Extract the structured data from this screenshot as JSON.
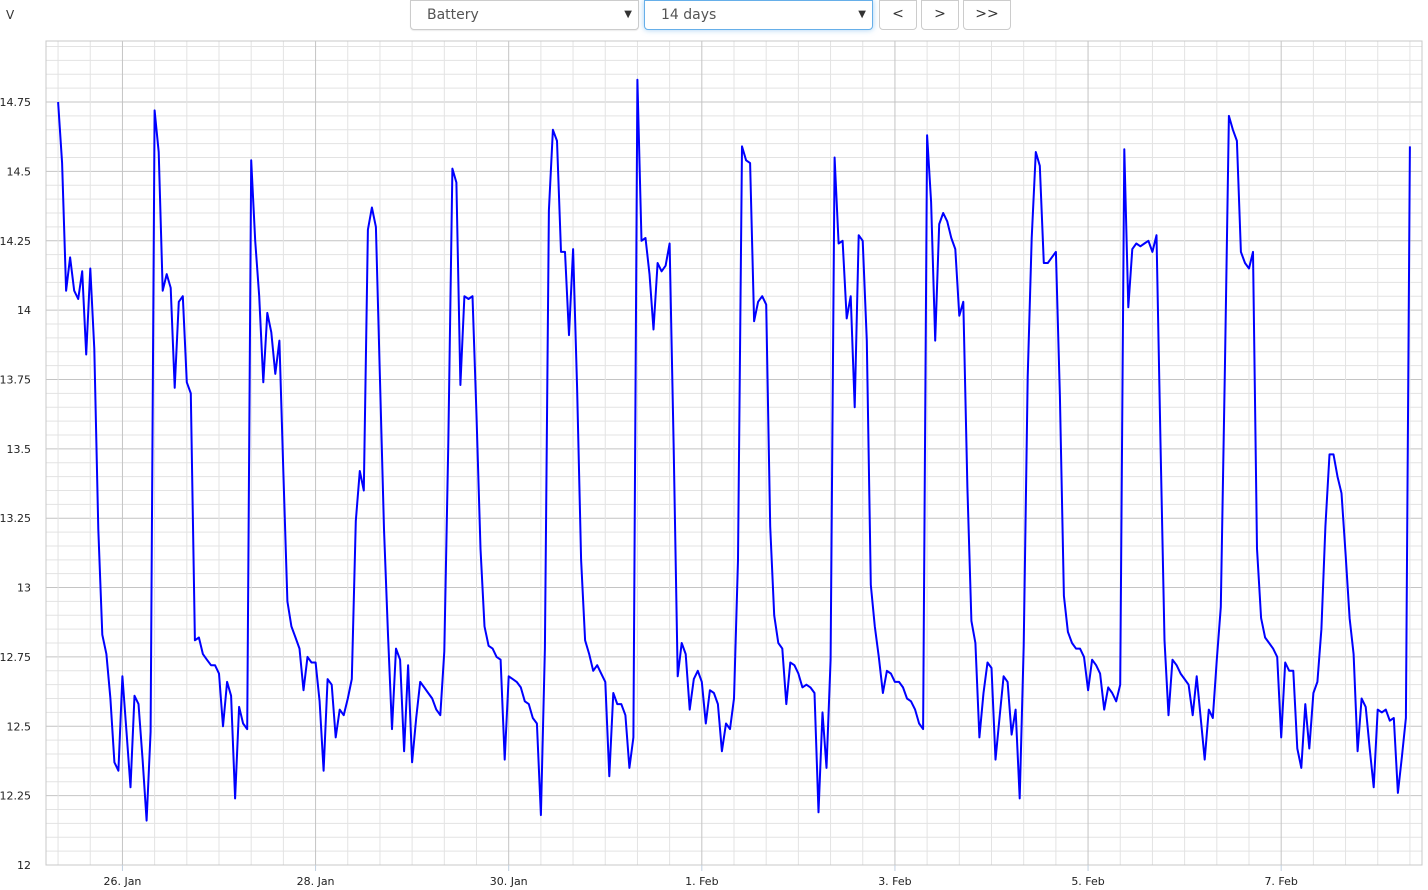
{
  "header": {
    "unit_label": "V",
    "source_select": {
      "value": "Battery",
      "icon": "caret-down-icon"
    },
    "range_select": {
      "value": "14 days",
      "icon": "caret-down-icon"
    },
    "prev_label": "<",
    "next_label": ">",
    "last_label": ">>"
  },
  "colors": {
    "line": "#0000ff",
    "grid_minor": "#e3e3e3",
    "grid_major": "#c4c4c4"
  },
  "chart_data": {
    "type": "line",
    "title": "",
    "xlabel": "",
    "ylabel": "V",
    "grid": true,
    "ylim": [
      12,
      14.97
    ],
    "xlim": [
      "25 Jan 05:00",
      "8 Feb 11:00"
    ],
    "y_ticks": [
      {
        "value": 12,
        "label": "12"
      },
      {
        "value": 12.25,
        "label": "12.25"
      },
      {
        "value": 12.5,
        "label": "12.5"
      },
      {
        "value": 12.75,
        "label": "12.75"
      },
      {
        "value": 13,
        "label": "13"
      },
      {
        "value": 13.25,
        "label": "13.25"
      },
      {
        "value": 13.5,
        "label": "13.5"
      },
      {
        "value": 13.75,
        "label": "13.75"
      },
      {
        "value": 14,
        "label": "14"
      },
      {
        "value": 14.25,
        "label": "14.25"
      },
      {
        "value": 14.5,
        "label": "14.5"
      },
      {
        "value": 14.75,
        "label": "14.75"
      }
    ],
    "x_ticks": [
      {
        "at": "26 Jan 00:00",
        "label": "26. Jan"
      },
      {
        "at": "28 Jan 00:00",
        "label": "28. Jan"
      },
      {
        "at": "30 Jan 00:00",
        "label": "30. Jan"
      },
      {
        "at": "1 Feb 00:00",
        "label": "1. Feb"
      },
      {
        "at": "3 Feb 00:00",
        "label": "3. Feb"
      },
      {
        "at": "5 Feb 00:00",
        "label": "5. Feb"
      },
      {
        "at": "7 Feb 00:00",
        "label": "7. Feb"
      }
    ],
    "series": [
      {
        "x_start": "25 Jan 08:00",
        "interval_hours": 1,
        "values": [
          14.75,
          14.53,
          14.07,
          14.19,
          14.07,
          14.04,
          14.14,
          13.84,
          14.15,
          13.86,
          13.21,
          12.83,
          12.76,
          12.6,
          12.37,
          12.34,
          12.68,
          12.48,
          12.28,
          12.61,
          12.58,
          12.38,
          12.16,
          12.48,
          14.72,
          14.57,
          14.07,
          14.13,
          14.08,
          13.72,
          14.03,
          14.05,
          13.74,
          13.7,
          12.81,
          12.82,
          12.76,
          12.74,
          12.72,
          12.72,
          12.69,
          12.5,
          12.66,
          12.61,
          12.24,
          12.57,
          12.51,
          12.49,
          14.54,
          14.25,
          14.05,
          13.74,
          13.99,
          13.92,
          13.77,
          13.89,
          13.41,
          12.95,
          12.86,
          12.82,
          12.78,
          12.63,
          12.75,
          12.73,
          12.73,
          12.59,
          12.34,
          12.67,
          12.65,
          12.46,
          12.56,
          12.54,
          12.6,
          12.67,
          13.24,
          13.42,
          13.35,
          14.29,
          14.37,
          14.3,
          13.76,
          13.21,
          12.83,
          12.49,
          12.78,
          12.74,
          12.41,
          12.72,
          12.37,
          12.53,
          12.66,
          12.64,
          12.62,
          12.6,
          12.56,
          12.54,
          12.77,
          13.52,
          14.51,
          14.46,
          13.73,
          14.05,
          14.04,
          14.05,
          13.62,
          13.14,
          12.86,
          12.79,
          12.78,
          12.75,
          12.74,
          12.38,
          12.68,
          12.67,
          12.66,
          12.64,
          12.59,
          12.58,
          12.53,
          12.51,
          12.18,
          12.78,
          14.36,
          14.65,
          14.61,
          14.21,
          14.21,
          13.91,
          14.22,
          13.72,
          13.1,
          12.81,
          12.76,
          12.7,
          12.72,
          12.69,
          12.66,
          12.32,
          12.62,
          12.58,
          12.58,
          12.54,
          12.35,
          12.46,
          14.83,
          14.25,
          14.26,
          14.13,
          13.93,
          14.17,
          14.14,
          14.16,
          14.24,
          13.52,
          12.68,
          12.8,
          12.76,
          12.56,
          12.67,
          12.7,
          12.66,
          12.51,
          12.63,
          12.62,
          12.58,
          12.41,
          12.51,
          12.49,
          12.6,
          13.1,
          14.59,
          14.54,
          14.53,
          13.96,
          14.03,
          14.05,
          14.02,
          13.22,
          12.9,
          12.8,
          12.78,
          12.58,
          12.73,
          12.72,
          12.69,
          12.64,
          12.65,
          12.64,
          12.62,
          12.19,
          12.55,
          12.35,
          12.74,
          14.55,
          14.24,
          14.25,
          13.97,
          14.05,
          13.65,
          14.27,
          14.25,
          13.89,
          13.01,
          12.86,
          12.75,
          12.62,
          12.7,
          12.69,
          12.66,
          12.66,
          12.64,
          12.6,
          12.59,
          12.56,
          12.51,
          12.49,
          14.63,
          14.39,
          13.89,
          14.31,
          14.35,
          14.32,
          14.26,
          14.22,
          13.98,
          14.03,
          13.36,
          12.88,
          12.8,
          12.46,
          12.62,
          12.73,
          12.71,
          12.38,
          12.53,
          12.68,
          12.66,
          12.47,
          12.56,
          12.24,
          12.79,
          13.76,
          14.26,
          14.57,
          14.52,
          14.17,
          14.17,
          14.19,
          14.21,
          13.69,
          12.97,
          12.84,
          12.8,
          12.78,
          12.78,
          12.75,
          12.63,
          12.74,
          12.72,
          12.69,
          12.56,
          12.64,
          12.62,
          12.59,
          12.65,
          14.58,
          14.01,
          14.22,
          14.24,
          14.23,
          14.24,
          14.25,
          14.21,
          14.27,
          13.52,
          12.81,
          12.54,
          12.74,
          12.72,
          12.69,
          12.67,
          12.65,
          12.54,
          12.68,
          12.53,
          12.38,
          12.56,
          12.53,
          12.74,
          12.93,
          13.79,
          14.7,
          14.65,
          14.61,
          14.21,
          14.17,
          14.15,
          14.21,
          13.14,
          12.89,
          12.82,
          12.8,
          12.78,
          12.75,
          12.46,
          12.73,
          12.7,
          12.7,
          12.42,
          12.35,
          12.58,
          12.42,
          12.62,
          12.66,
          12.85,
          13.22,
          13.48,
          13.48,
          13.4,
          13.34,
          13.12,
          12.89,
          12.76,
          12.41,
          12.6,
          12.57,
          12.42,
          12.28,
          12.56,
          12.55,
          12.56,
          12.52,
          12.53,
          12.26,
          12.39,
          12.53,
          14.59
        ]
      }
    ]
  }
}
